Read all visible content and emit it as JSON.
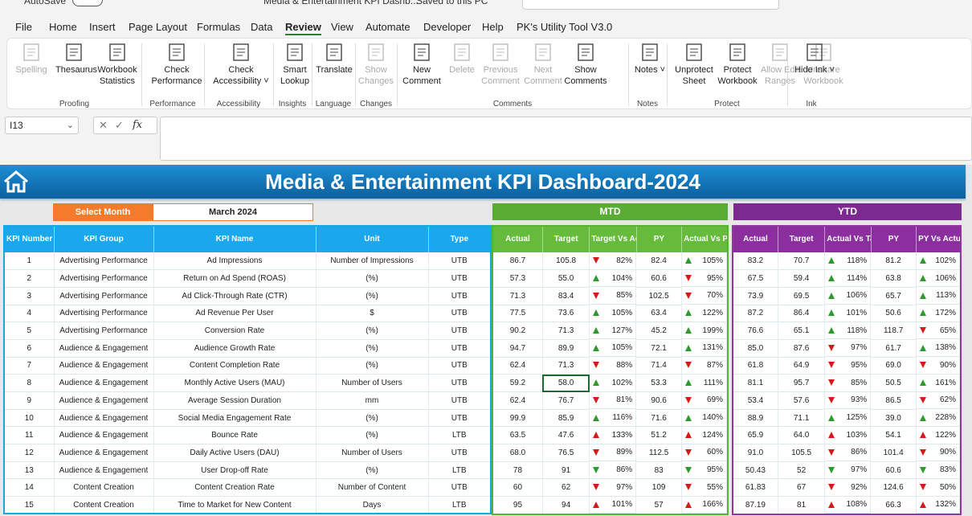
{
  "topbar": {
    "autosave": "AutoSave",
    "toggle": "Off",
    "doc_title": "Media & Entertainment KPI Dashb...",
    "saved": "Saved to this PC",
    "search": "Search"
  },
  "menu": [
    "File",
    "Home",
    "Insert",
    "Page Layout",
    "Formulas",
    "Data",
    "Review",
    "View",
    "Automate",
    "Developer",
    "Help",
    "PK's Utility Tool V3.0"
  ],
  "menu_active": "Review",
  "ribbon": {
    "groups": [
      {
        "label": "Proofing",
        "buttons": [
          "Spelling",
          "Thesaurus",
          "Workbook Statistics"
        ]
      },
      {
        "label": "Performance",
        "buttons": [
          "Check Performance"
        ]
      },
      {
        "label": "Accessibility",
        "buttons": [
          "Check Accessibility ˅"
        ]
      },
      {
        "label": "Insights",
        "buttons": [
          "Smart Lookup"
        ]
      },
      {
        "label": "Language",
        "buttons": [
          "Translate"
        ]
      },
      {
        "label": "Changes",
        "buttons": [
          "Show Changes"
        ]
      },
      {
        "label": "Comments",
        "buttons": [
          "New Comment",
          "Delete",
          "Previous Comment",
          "Next Comment",
          "Show Comments"
        ]
      },
      {
        "label": "Notes",
        "buttons": [
          "Notes ˅"
        ]
      },
      {
        "label": "Protect",
        "buttons": [
          "Unprotect Sheet",
          "Protect Workbook",
          "Allow Edit Ranges",
          "Unshare Workbook"
        ]
      },
      {
        "label": "Ink",
        "buttons": [
          "Hide Ink ˅"
        ]
      }
    ]
  },
  "formula_bar": {
    "name_box": "I13",
    "fx": "fx",
    "formula": ""
  },
  "dashboard": {
    "title": "Media & Entertainment KPI Dashboard-2024",
    "select_month_label": "Select Month",
    "select_month_value": "March 2024",
    "mtd_label": "MTD",
    "ytd_label": "YTD",
    "info_headers": [
      "KPI Number",
      "KPI Group",
      "KPI Name",
      "Unit",
      "Type"
    ],
    "mtd_headers": [
      "Actual",
      "Target",
      "Target Vs Actual",
      "PY",
      "Actual Vs PY"
    ],
    "ytd_headers": [
      "Actual",
      "Target",
      "Actual Vs Target",
      "PY",
      "PY Vs Actual"
    ],
    "colors": {
      "banner": "#1e8fd6",
      "select": "#f37b2b",
      "mtd": "#5aac35",
      "ytd": "#7b2a8f",
      "up": "#2e9a2e",
      "down": "#d41a1a"
    },
    "rows": [
      {
        "num": "1",
        "group": "Advertising Performance",
        "name": "Ad Impressions",
        "unit": "Number of Impressions",
        "type": "UTB",
        "m_act": "86.7",
        "m_tgt": "105.8",
        "m_tva": "82%",
        "m_tva_dir": "down",
        "m_py": "82.4",
        "m_avp": "105%",
        "m_avp_dir": "up",
        "y_act": "83.2",
        "y_tgt": "70.7",
        "y_avt": "118%",
        "y_avt_dir": "up",
        "y_py": "81.2",
        "y_pva": "102%",
        "y_pva_dir": "up"
      },
      {
        "num": "2",
        "group": "Advertising Performance",
        "name": "Return on Ad Spend (ROAS)",
        "unit": "(%)",
        "type": "UTB",
        "m_act": "57.3",
        "m_tgt": "55.0",
        "m_tva": "104%",
        "m_tva_dir": "up",
        "m_py": "60.6",
        "m_avp": "95%",
        "m_avp_dir": "down",
        "y_act": "67.5",
        "y_tgt": "59.4",
        "y_avt": "114%",
        "y_avt_dir": "up",
        "y_py": "63.8",
        "y_pva": "106%",
        "y_pva_dir": "up"
      },
      {
        "num": "3",
        "group": "Advertising Performance",
        "name": "Ad Click-Through Rate (CTR)",
        "unit": "(%)",
        "type": "UTB",
        "m_act": "71.3",
        "m_tgt": "83.4",
        "m_tva": "85%",
        "m_tva_dir": "down",
        "m_py": "102.5",
        "m_avp": "70%",
        "m_avp_dir": "down",
        "y_act": "73.9",
        "y_tgt": "69.5",
        "y_avt": "106%",
        "y_avt_dir": "up",
        "y_py": "65.7",
        "y_pva": "113%",
        "y_pva_dir": "up"
      },
      {
        "num": "4",
        "group": "Advertising Performance",
        "name": "Ad Revenue Per User",
        "unit": "$",
        "type": "UTB",
        "m_act": "77.5",
        "m_tgt": "73.6",
        "m_tva": "105%",
        "m_tva_dir": "up",
        "m_py": "63.4",
        "m_avp": "122%",
        "m_avp_dir": "up",
        "y_act": "87.2",
        "y_tgt": "86.4",
        "y_avt": "101%",
        "y_avt_dir": "up",
        "y_py": "50.6",
        "y_pva": "172%",
        "y_pva_dir": "up"
      },
      {
        "num": "5",
        "group": "Advertising Performance",
        "name": "Conversion Rate",
        "unit": "(%)",
        "type": "UTB",
        "m_act": "90.2",
        "m_tgt": "71.3",
        "m_tva": "127%",
        "m_tva_dir": "up",
        "m_py": "45.2",
        "m_avp": "199%",
        "m_avp_dir": "up",
        "y_act": "76.6",
        "y_tgt": "65.1",
        "y_avt": "118%",
        "y_avt_dir": "up",
        "y_py": "118.7",
        "y_pva": "65%",
        "y_pva_dir": "down"
      },
      {
        "num": "6",
        "group": "Audience & Engagement",
        "name": "Audience Growth Rate",
        "unit": "(%)",
        "type": "UTB",
        "m_act": "94.7",
        "m_tgt": "89.9",
        "m_tva": "105%",
        "m_tva_dir": "up",
        "m_py": "72.1",
        "m_avp": "131%",
        "m_avp_dir": "up",
        "y_act": "85.0",
        "y_tgt": "87.6",
        "y_avt": "97%",
        "y_avt_dir": "down",
        "y_py": "61.7",
        "y_pva": "138%",
        "y_pva_dir": "up"
      },
      {
        "num": "7",
        "group": "Audience & Engagement",
        "name": "Content Completion Rate",
        "unit": "(%)",
        "type": "UTB",
        "m_act": "62.4",
        "m_tgt": "71.3",
        "m_tva": "88%",
        "m_tva_dir": "down",
        "m_py": "71.4",
        "m_avp": "87%",
        "m_avp_dir": "down",
        "y_act": "61.8",
        "y_tgt": "64.9",
        "y_avt": "95%",
        "y_avt_dir": "down",
        "y_py": "69.0",
        "y_pva": "90%",
        "y_pva_dir": "down"
      },
      {
        "num": "8",
        "group": "Audience & Engagement",
        "name": "Monthly Active Users (MAU)",
        "unit": "Number of Users",
        "type": "UTB",
        "m_act": "59.2",
        "m_tgt": "58.0",
        "m_tva": "102%",
        "m_tva_dir": "up",
        "m_py": "53.3",
        "m_avp": "111%",
        "m_avp_dir": "up",
        "y_act": "81.1",
        "y_tgt": "95.7",
        "y_avt": "85%",
        "y_avt_dir": "down",
        "y_py": "50.5",
        "y_pva": "161%",
        "y_pva_dir": "up"
      },
      {
        "num": "9",
        "group": "Audience & Engagement",
        "name": "Average Session Duration",
        "unit": "mm",
        "type": "UTB",
        "m_act": "62.4",
        "m_tgt": "76.7",
        "m_tva": "81%",
        "m_tva_dir": "down",
        "m_py": "90.6",
        "m_avp": "69%",
        "m_avp_dir": "down",
        "y_act": "53.4",
        "y_tgt": "57.6",
        "y_avt": "93%",
        "y_avt_dir": "down",
        "y_py": "86.5",
        "y_pva": "62%",
        "y_pva_dir": "down"
      },
      {
        "num": "10",
        "group": "Audience & Engagement",
        "name": "Social Media Engagement Rate",
        "unit": "(%)",
        "type": "UTB",
        "m_act": "99.9",
        "m_tgt": "85.9",
        "m_tva": "116%",
        "m_tva_dir": "up",
        "m_py": "71.6",
        "m_avp": "140%",
        "m_avp_dir": "up",
        "y_act": "88.9",
        "y_tgt": "71.1",
        "y_avt": "125%",
        "y_avt_dir": "up",
        "y_py": "39.0",
        "y_pva": "228%",
        "y_pva_dir": "up"
      },
      {
        "num": "11",
        "group": "Audience & Engagement",
        "name": "Bounce Rate",
        "unit": "(%)",
        "type": "LTB",
        "m_act": "63.5",
        "m_tgt": "47.6",
        "m_tva": "133%",
        "m_tva_dir": "up_red",
        "m_py": "51.2",
        "m_avp": "124%",
        "m_avp_dir": "up_red",
        "y_act": "65.9",
        "y_tgt": "64.0",
        "y_avt": "103%",
        "y_avt_dir": "up_red",
        "y_py": "54.1",
        "y_pva": "122%",
        "y_pva_dir": "up_red"
      },
      {
        "num": "12",
        "group": "Audience & Engagement",
        "name": "Daily Active Users (DAU)",
        "unit": "Number of Users",
        "type": "UTB",
        "m_act": "68.0",
        "m_tgt": "76.5",
        "m_tva": "89%",
        "m_tva_dir": "down",
        "m_py": "112.5",
        "m_avp": "60%",
        "m_avp_dir": "down",
        "y_act": "91.0",
        "y_tgt": "105.5",
        "y_avt": "86%",
        "y_avt_dir": "down",
        "y_py": "101.4",
        "y_pva": "90%",
        "y_pva_dir": "down"
      },
      {
        "num": "13",
        "group": "Audience & Engagement",
        "name": "User Drop-off Rate",
        "unit": "(%)",
        "type": "LTB",
        "m_act": "78",
        "m_tgt": "91",
        "m_tva": "86%",
        "m_tva_dir": "down_green",
        "m_py": "83",
        "m_avp": "95%",
        "m_avp_dir": "down_green",
        "y_act": "50.43",
        "y_tgt": "52",
        "y_avt": "97%",
        "y_avt_dir": "down_green",
        "y_py": "60.6",
        "y_pva": "83%",
        "y_pva_dir": "down_green"
      },
      {
        "num": "14",
        "group": "Content Creation",
        "name": "Content Creation Rate",
        "unit": "Number of Content",
        "type": "UTB",
        "m_act": "60",
        "m_tgt": "62",
        "m_tva": "97%",
        "m_tva_dir": "down",
        "m_py": "109",
        "m_avp": "55%",
        "m_avp_dir": "down",
        "y_act": "61.83",
        "y_tgt": "67",
        "y_avt": "92%",
        "y_avt_dir": "down",
        "y_py": "124.6",
        "y_pva": "50%",
        "y_pva_dir": "down"
      },
      {
        "num": "15",
        "group": "Content Creation",
        "name": "Time to Market for New Content",
        "unit": "Days",
        "type": "LTB",
        "m_act": "95",
        "m_tgt": "94",
        "m_tva": "101%",
        "m_tva_dir": "up_red",
        "m_py": "57",
        "m_avp": "166%",
        "m_avp_dir": "up_red",
        "y_act": "87.19",
        "y_tgt": "81",
        "y_avt": "108%",
        "y_avt_dir": "up_red",
        "y_py": "66.3",
        "y_pva": "132%",
        "y_pva_dir": "up_red"
      }
    ]
  }
}
